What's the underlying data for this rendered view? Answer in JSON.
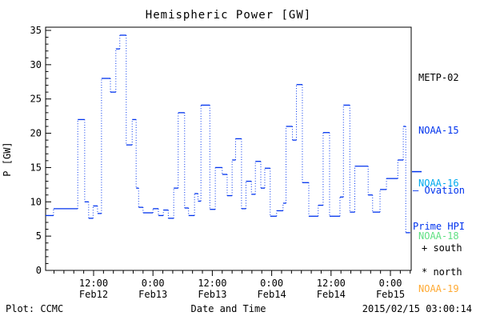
{
  "header": {
    "title": "Hemispheric Power [GW]"
  },
  "colors": {
    "foreground": "#000000",
    "hpi_line": "#0033ee",
    "noaa16": "#00aaee",
    "noaa18": "#5fe083",
    "noaa19": "#ffaa33"
  },
  "legend": {
    "items": [
      {
        "label": "METP-02",
        "color": "#000000"
      },
      {
        "label": "NOAA-15",
        "color": "#0033ee"
      },
      {
        "label": "NOAA-16",
        "color": "#00aaee"
      },
      {
        "label": "NOAA-18",
        "color": "#5fe083"
      },
      {
        "label": "NOAA-19",
        "color": "#ffaa33"
      }
    ]
  },
  "annotations": {
    "ovation_line1": "— Ovation",
    "ovation_line2": "Prime HPI",
    "ovation_color": "#0033ee",
    "south": "+ south",
    "north": "* north"
  },
  "footer": {
    "left": "Plot: CCMC",
    "center": "Date and Time",
    "right": "2015/02/15 03:00:14"
  },
  "chart_data": {
    "type": "line",
    "subtype": "step-segments-with-dotted-connectors",
    "title": "Hemispheric Power [GW]",
    "xlabel": "Date and Time",
    "ylabel": "P [GW]",
    "ylim": [
      0,
      35
    ],
    "y_major_step": 5,
    "y_minor_step": 1,
    "y_tick_labels": [
      "0",
      "5",
      "10",
      "15",
      "20",
      "25",
      "30",
      "35"
    ],
    "x_unit": "hours since 2015-02-12 00:00",
    "xlim": [
      2.3,
      76.2
    ],
    "x_minor_step_hours": 2,
    "x_major_ticks": [
      {
        "t": 12,
        "time": "12:00",
        "date": "Feb12"
      },
      {
        "t": 24,
        "time": "0:00",
        "date": "Feb13"
      },
      {
        "t": 36,
        "time": "12:00",
        "date": "Feb13"
      },
      {
        "t": 48,
        "time": "0:00",
        "date": "Feb14"
      },
      {
        "t": 60,
        "time": "12:00",
        "date": "Feb14"
      },
      {
        "t": 72,
        "time": "0:00",
        "date": "Feb15"
      }
    ],
    "grid": false,
    "legend_position": "right-margin",
    "series": [
      {
        "name": "Ovation Prime HPI (NOAA-15)",
        "color": "#0033ee",
        "units": "GW",
        "segments_t0_t1_gw": [
          [
            2.3,
            3.9,
            8
          ],
          [
            3.9,
            8.8,
            9
          ],
          [
            8.8,
            10.2,
            22
          ],
          [
            10.2,
            11.0,
            10
          ],
          [
            11.0,
            11.9,
            7.6
          ],
          [
            11.9,
            12.8,
            9.4
          ],
          [
            12.8,
            13.6,
            8.3
          ],
          [
            13.6,
            15.4,
            28
          ],
          [
            15.4,
            16.5,
            26
          ],
          [
            16.5,
            17.3,
            32.3
          ],
          [
            17.3,
            18.6,
            34.3
          ],
          [
            18.6,
            19.8,
            18.3
          ],
          [
            19.8,
            20.6,
            22
          ],
          [
            20.6,
            21.1,
            12
          ],
          [
            21.1,
            22.0,
            9.2
          ],
          [
            22.0,
            24.0,
            8.4
          ],
          [
            24.0,
            25.1,
            9
          ],
          [
            25.1,
            26.1,
            8
          ],
          [
            26.1,
            27.1,
            8.8
          ],
          [
            27.1,
            28.2,
            7.6
          ],
          [
            28.2,
            29.1,
            12
          ],
          [
            29.1,
            30.4,
            23
          ],
          [
            30.4,
            31.2,
            9.1
          ],
          [
            31.2,
            32.4,
            8
          ],
          [
            32.4,
            33.1,
            11.2
          ],
          [
            33.1,
            33.7,
            10.1
          ],
          [
            33.7,
            35.5,
            24.1
          ],
          [
            35.5,
            36.6,
            8.9
          ],
          [
            36.6,
            38.0,
            15
          ],
          [
            38.0,
            39.0,
            14
          ],
          [
            39.0,
            40.0,
            10.9
          ],
          [
            40.0,
            40.7,
            16.1
          ],
          [
            40.7,
            41.9,
            19.2
          ],
          [
            41.9,
            42.8,
            9
          ],
          [
            42.8,
            43.9,
            13
          ],
          [
            43.9,
            44.7,
            11.1
          ],
          [
            44.7,
            45.8,
            15.9
          ],
          [
            45.8,
            46.6,
            12
          ],
          [
            46.6,
            47.7,
            14.9
          ],
          [
            47.7,
            49.0,
            7.9
          ],
          [
            49.0,
            50.3,
            8.7
          ],
          [
            50.3,
            50.9,
            9.8
          ],
          [
            50.9,
            52.2,
            21
          ],
          [
            52.2,
            53.0,
            19
          ],
          [
            53.0,
            54.2,
            27.1
          ],
          [
            54.2,
            55.5,
            12.8
          ],
          [
            55.5,
            57.4,
            7.9
          ],
          [
            57.4,
            58.4,
            9.5
          ],
          [
            58.4,
            59.7,
            20.1
          ],
          [
            59.7,
            61.8,
            7.9
          ],
          [
            61.8,
            62.5,
            10.7
          ],
          [
            62.5,
            63.8,
            24.1
          ],
          [
            63.8,
            64.8,
            8.5
          ],
          [
            64.8,
            67.5,
            15.2
          ],
          [
            67.5,
            68.4,
            11
          ],
          [
            68.4,
            69.9,
            8.5
          ],
          [
            69.9,
            71.2,
            11.8
          ],
          [
            71.2,
            73.5,
            13.4
          ],
          [
            73.5,
            74.6,
            16.1
          ],
          [
            74.6,
            75.1,
            21
          ],
          [
            75.1,
            76.0,
            5.5
          ]
        ]
      }
    ],
    "right_marker": {
      "label": "Ovation Prime HPI",
      "value_gw": 14.4
    },
    "hemisphere_markers": {
      "south_symbol": "+",
      "north_symbol": "*"
    }
  }
}
